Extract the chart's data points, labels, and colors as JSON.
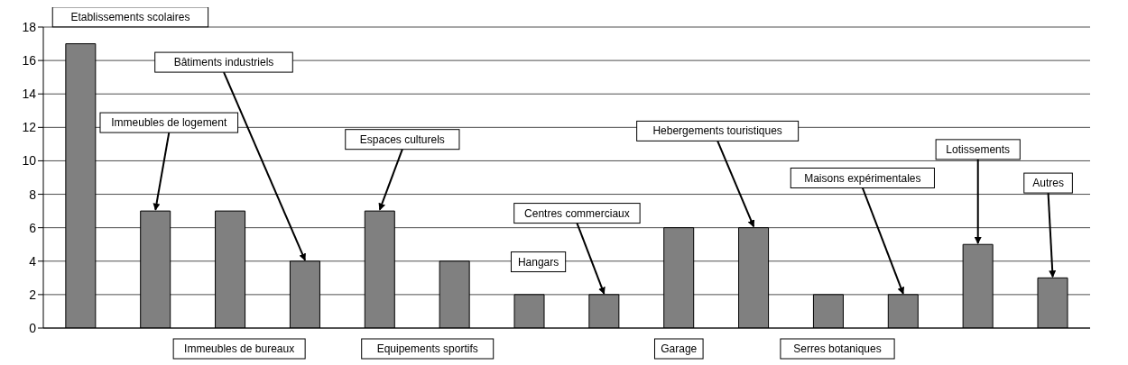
{
  "chart_data": {
    "type": "bar",
    "categories": [
      null,
      null,
      null,
      null,
      null,
      null,
      null,
      null,
      null,
      null,
      null,
      null,
      null,
      null
    ],
    "values": [
      17,
      7,
      7,
      4,
      7,
      4,
      2,
      2,
      6,
      6,
      2,
      2,
      5,
      3
    ],
    "color": "#808080",
    "ylim": [
      0,
      18
    ],
    "yticks": [
      0,
      2,
      4,
      6,
      8,
      10,
      12,
      14,
      16,
      18
    ],
    "grid": "y",
    "tick_labels": "y",
    "annotations": [
      "Etablissements scolaires",
      "Immeubles de logement",
      "Immeubles de bureaux",
      "Bâtiments industriels",
      "Espaces culturels",
      "Equipements sportifs",
      "Hangars",
      "Centres commerciaux",
      "Garage",
      "Hebergements touristiques",
      "Serres botaniques",
      "Maisons expérimentales",
      "Lotissements",
      "Autres"
    ]
  }
}
